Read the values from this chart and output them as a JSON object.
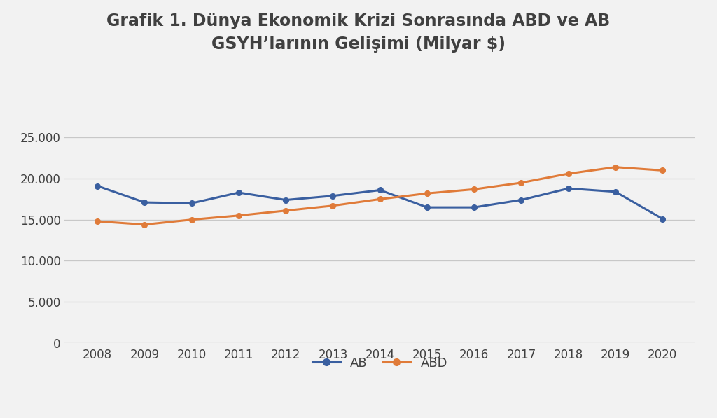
{
  "title_line1": "Grafik 1. Dünya Ekonomik Krizi Sonrasında ABD ve AB",
  "title_line2": "GSYH’larının Gelişimi (Milyar $)",
  "years": [
    2008,
    2009,
    2010,
    2011,
    2012,
    2013,
    2014,
    2015,
    2016,
    2017,
    2018,
    2019,
    2020
  ],
  "AB": [
    19100,
    17100,
    17000,
    18300,
    17400,
    17900,
    18600,
    16500,
    16500,
    17400,
    18800,
    18400,
    15100
  ],
  "ABD": [
    14800,
    14400,
    15000,
    15500,
    16100,
    16700,
    17500,
    18200,
    18700,
    19500,
    20600,
    21400,
    21000
  ],
  "AB_color": "#3a5fa0",
  "ABD_color": "#e07b39",
  "bg_color": "#f2f2f2",
  "grid_color": "#c8c8c8",
  "text_color": "#404040",
  "yticks": [
    0,
    5000,
    10000,
    15000,
    20000,
    25000
  ],
  "ylim": [
    0,
    27500
  ],
  "title_fontsize": 17,
  "legend_fontsize": 13,
  "tick_fontsize": 12
}
